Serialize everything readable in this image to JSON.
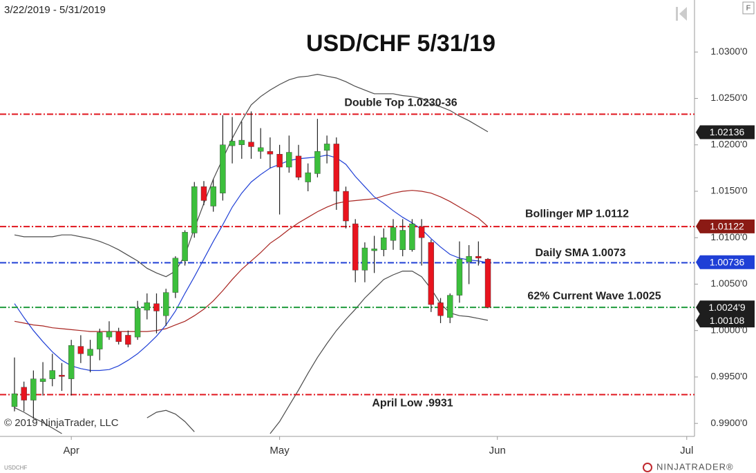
{
  "chart_data": {
    "type": "candlestick",
    "title": "USD/CHF 5/31/19",
    "date_range": "3/22/2019 - 5/31/2019",
    "copyright": "© 2019 NinjaTrader, LLC",
    "symbol": "USDCHF",
    "brand": "NINJATRADER®",
    "corner_button": "F",
    "up_color": "#3cbf3c",
    "down_color": "#e8141e",
    "open": [
      0.9918,
      0.9939,
      0.9925,
      0.9945,
      0.9948,
      0.9952,
      0.9948,
      0.9983,
      0.9973,
      0.998,
      0.9993,
      0.9999,
      0.9995,
      0.9993,
      1.0022,
      1.0029,
      1.0016,
      1.0041,
      1.0075,
      1.0105,
      1.0155,
      1.0134,
      1.0148,
      1.0199,
      1.02,
      1.0203,
      1.0193,
      1.0193,
      1.019,
      1.0176,
      1.0188,
      1.016,
      1.0169,
      1.0194,
      1.0201,
      1.015,
      1.0115,
      1.0065,
      1.0086,
      1.0087,
      1.0097,
      1.0087,
      1.0087,
      1.0112,
      1.0095,
      1.003,
      1.0014,
      1.0038,
      1.0074,
      1.008,
      1.0077
    ],
    "high": [
      0.9971,
      0.9945,
      0.9957,
      0.9966,
      0.9975,
      0.9965,
      0.999,
      0.9995,
      0.999,
      1.0002,
      1.001,
      1.0003,
      1.0,
      1.0032,
      1.004,
      1.004,
      1.0045,
      1.008,
      1.0108,
      1.016,
      1.0161,
      1.0163,
      1.0232,
      1.023,
      1.0225,
      1.0236,
      1.0218,
      1.0208,
      1.02,
      1.021,
      1.02,
      1.018,
      1.0228,
      1.021,
      1.0208,
      1.0155,
      1.012,
      1.0095,
      1.0102,
      1.011,
      1.012,
      1.012,
      1.012,
      1.012,
      1.0098,
      1.0035,
      1.004,
      1.0096,
      1.0092,
      1.0096,
      1.0078
    ],
    "low": [
      0.9913,
      0.9913,
      0.9905,
      0.993,
      0.994,
      0.9935,
      0.993,
      0.9965,
      0.9955,
      0.9968,
      0.999,
      0.9985,
      0.9982,
      0.999,
      1.0012,
      0.9997,
      1.0005,
      1.0035,
      1.007,
      1.01,
      1.0135,
      1.0128,
      1.014,
      1.018,
      1.0185,
      1.0185,
      1.0185,
      1.0175,
      1.0125,
      1.017,
      1.0162,
      1.015,
      1.0165,
      1.018,
      1.013,
      1.011,
      1.0052,
      1.0052,
      1.0062,
      1.008,
      1.0087,
      1.008,
      1.0085,
      1.007,
      1.002,
      1.0008,
      1.0008,
      1.003,
      1.005,
      1.007,
      1.0024
    ],
    "close": [
      0.9932,
      0.9925,
      0.9948,
      0.9948,
      0.9957,
      0.9951,
      0.9984,
      0.9975,
      0.998,
      0.9998,
      0.9999,
      0.9988,
      0.9985,
      1.0024,
      1.003,
      1.0021,
      1.0041,
      1.0078,
      1.0106,
      1.0155,
      1.014,
      1.0155,
      1.02,
      1.0204,
      1.0205,
      1.0198,
      1.0197,
      1.019,
      1.0176,
      1.0192,
      1.0165,
      1.017,
      1.0193,
      1.0201,
      1.015,
      1.0118,
      1.0065,
      1.0089,
      1.0088,
      1.01,
      1.0111,
      1.0108,
      1.0115,
      1.01,
      1.0028,
      1.0016,
      1.0038,
      1.0077,
      1.008,
      1.0078,
      1.0025
    ],
    "series": [
      {
        "color": "#4a4a4a",
        "values": [
          1.0103,
          1.0101,
          1.0101,
          1.0101,
          1.0101,
          1.0103,
          1.0103,
          1.0101,
          1.0099,
          1.0096,
          1.0092,
          1.0087,
          1.0081,
          1.0075,
          1.0067,
          1.0062,
          1.0058,
          1.0064,
          1.0081,
          1.011,
          1.0137,
          1.0163,
          1.0185,
          1.0207,
          1.0226,
          1.0243,
          1.0252,
          1.0259,
          1.0265,
          1.027,
          1.0273,
          1.0274,
          1.0276,
          1.0274,
          1.0272,
          1.0268,
          1.0263,
          1.0259,
          1.0255,
          1.0255,
          1.0255,
          1.0253,
          1.0252,
          1.025,
          1.0244,
          1.0241,
          1.0237,
          1.0231,
          1.0226,
          1.022,
          1.0214
        ]
      },
      {
        "color": "#4a4a4a",
        "values": [
          0.9917,
          0.9912,
          0.9906,
          0.9901,
          0.9895,
          0.9889,
          null,
          null,
          null,
          null,
          null,
          null,
          null,
          null,
          0.9906,
          0.9912,
          0.9914,
          0.991,
          0.9902,
          0.9891,
          null,
          null,
          null,
          null,
          null,
          null,
          null,
          0.9889,
          0.9902,
          0.9919,
          0.9936,
          0.9954,
          0.9971,
          0.9986,
          1.0,
          1.0012,
          1.0023,
          1.0035,
          1.0045,
          1.0055,
          1.006,
          1.0064,
          1.0064,
          1.0058,
          1.0045,
          1.0029,
          1.0019,
          1.0016,
          1.0015,
          1.0013,
          1.0011
        ]
      },
      {
        "color": "#a8231f",
        "values": [
          1.001,
          1.0008,
          1.0006,
          1.0005,
          1.0003,
          1.0002,
          1.0001,
          1.0,
          0.9999,
          0.9999,
          0.9999,
          0.9999,
          0.9999,
          0.9999,
          0.9999,
          1.0,
          1.0002,
          1.0006,
          1.001,
          1.0016,
          1.0023,
          1.0032,
          1.0043,
          1.0055,
          1.0066,
          1.0075,
          1.0084,
          1.0094,
          1.0101,
          1.0109,
          1.0116,
          1.0122,
          1.0128,
          1.0133,
          1.0137,
          1.0139,
          1.014,
          1.0141,
          1.0142,
          1.0145,
          1.0148,
          1.015,
          1.0151,
          1.015,
          1.0148,
          1.0144,
          1.0139,
          1.0133,
          1.0127,
          1.0121,
          1.0112
        ]
      },
      {
        "color": "#1f3fd6",
        "values": [
          1.0029,
          1.0014,
          1.0,
          0.9988,
          0.9977,
          0.9968,
          0.9962,
          0.9959,
          0.9957,
          0.9957,
          0.9958,
          0.9962,
          0.9968,
          0.9975,
          0.9984,
          0.9994,
          1.0006,
          1.0021,
          1.004,
          1.0058,
          1.0077,
          1.0096,
          1.0114,
          1.0133,
          1.0148,
          1.016,
          1.0168,
          1.0175,
          1.0179,
          1.0183,
          1.0185,
          1.0186,
          1.0187,
          1.0189,
          1.0186,
          1.0179,
          1.0166,
          1.0155,
          1.0144,
          1.0137,
          1.0129,
          1.0122,
          1.0116,
          1.0109,
          1.0099,
          1.009,
          1.0082,
          1.0078,
          1.0076,
          1.0075,
          1.0073
        ]
      }
    ],
    "levels": [
      {
        "label": "Double Top 1.0230-36",
        "value": 1.0233,
        "color": "#e0141c"
      },
      {
        "label": "Bollinger MP 1.0112",
        "value": 1.0112,
        "color": "#e0141c"
      },
      {
        "label": "Daily SMA 1.0073",
        "value": 1.0073,
        "color": "#1f3fd6"
      },
      {
        "label": "62% Current Wave 1.0025",
        "value": 1.0025,
        "color": "#1d9a3a"
      },
      {
        "label": "April Low .9931",
        "value": 0.9931,
        "color": "#e0141c"
      }
    ],
    "price_tags": [
      {
        "value": 1.02136,
        "label": "1.02136",
        "color": "#1e1e1e"
      },
      {
        "value": 1.01122,
        "label": "1.01122",
        "color": "#8b1a14"
      },
      {
        "value": 1.00736,
        "label": "1.00736",
        "color": "#1f3fd6"
      },
      {
        "value": 1.00249,
        "label": "1.0024'9",
        "color": "#1e1e1e"
      },
      {
        "value": 1.00108,
        "label": "1.00108",
        "color": "#1e1e1e"
      }
    ],
    "xlim": [
      -1.53,
      71.82
    ],
    "xticks": [
      {
        "value": 6,
        "label": "Apr"
      },
      {
        "value": 28,
        "label": "May"
      },
      {
        "value": 51,
        "label": "Jun"
      },
      {
        "value": 71,
        "label": "Jul"
      }
    ],
    "ylim": [
      0.9886,
      1.0356
    ],
    "yticks": [
      {
        "value": 0.99,
        "label": "0.9900'0"
      },
      {
        "value": 0.995,
        "label": "0.9950'0"
      },
      {
        "value": 1.0,
        "label": "1.0000'0"
      },
      {
        "value": 1.005,
        "label": "1.0050'0"
      },
      {
        "value": 1.01,
        "label": "1.0100'0"
      },
      {
        "value": 1.015,
        "label": "1.0150'0"
      },
      {
        "value": 1.02,
        "label": "1.0200'0"
      },
      {
        "value": 1.025,
        "label": "1.0250'0"
      },
      {
        "value": 1.03,
        "label": "1.0300'0"
      }
    ],
    "grid": false
  }
}
